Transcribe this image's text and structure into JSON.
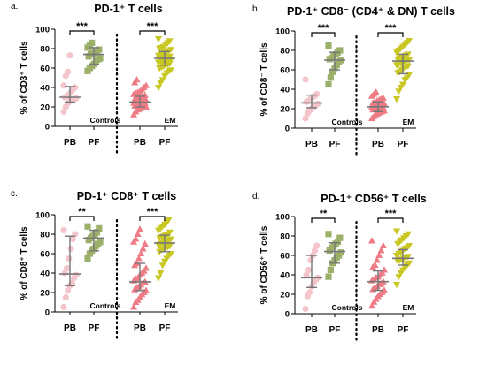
{
  "chart_data": [
    {
      "type": "scatter",
      "panel_label": "a.",
      "title": "PD-1⁺ T cells",
      "ylabel": "% of CD3⁺ T cells",
      "ylim": [
        0,
        100
      ],
      "yticks": [
        0,
        20,
        40,
        60,
        80,
        100
      ],
      "categories": [
        "PB",
        "PF",
        "PB",
        "PF"
      ],
      "group_labels": [
        "Controls",
        "EM"
      ],
      "significance": [
        "***",
        "***"
      ],
      "series": [
        {
          "group": "Controls",
          "category": "PB",
          "marker": "circle",
          "color": "#f4c6cb",
          "values": [
            15,
            20,
            24,
            26,
            27,
            28,
            29,
            30,
            31,
            33,
            35,
            38,
            40,
            42,
            52,
            56,
            73
          ],
          "median": 30,
          "iqr": [
            25,
            41
          ]
        },
        {
          "group": "Controls",
          "category": "PF",
          "marker": "square",
          "color": "#9cb06a",
          "values": [
            57,
            60,
            62,
            64,
            67,
            69,
            70,
            72,
            74,
            75,
            76,
            77,
            79,
            81,
            83,
            86
          ],
          "median": 74,
          "iqr": [
            64,
            81
          ]
        },
        {
          "group": "EM",
          "category": "PB",
          "marker": "triangle-up",
          "color": "#ee7b85",
          "values": [
            12,
            15,
            17,
            18,
            19,
            20,
            20,
            21,
            22,
            22,
            23,
            23,
            24,
            24,
            25,
            25,
            26,
            26,
            27,
            27,
            28,
            29,
            30,
            30,
            31,
            32,
            33,
            34,
            35,
            36,
            38,
            40,
            42,
            45,
            48
          ],
          "median": 25,
          "iqr": [
            20,
            31
          ]
        },
        {
          "group": "EM",
          "category": "PF",
          "marker": "triangle-down",
          "color": "#c9c822",
          "values": [
            40,
            45,
            48,
            52,
            55,
            57,
            58,
            60,
            61,
            62,
            63,
            64,
            65,
            66,
            67,
            67,
            68,
            68,
            69,
            69,
            70,
            70,
            71,
            71,
            72,
            72,
            73,
            74,
            75,
            76,
            77,
            78,
            79,
            80,
            81,
            82,
            84,
            86,
            88,
            90
          ],
          "median": 70,
          "iqr": [
            63,
            77
          ]
        }
      ]
    },
    {
      "type": "scatter",
      "panel_label": "b.",
      "title": "PD-1⁺ CD8⁻ (CD4⁺ & DN) T cells",
      "ylabel": "% of CD8⁻ T cells",
      "ylim": [
        0,
        100
      ],
      "yticks": [
        0,
        20,
        40,
        60,
        80,
        100
      ],
      "categories": [
        "PB",
        "PF",
        "PB",
        "PF"
      ],
      "group_labels": [
        "Controls",
        "EM"
      ],
      "significance": [
        "***",
        "***"
      ],
      "series": [
        {
          "group": "Controls",
          "category": "PB",
          "marker": "circle",
          "color": "#f4c6cb",
          "values": [
            10,
            15,
            18,
            20,
            22,
            24,
            25,
            27,
            28,
            30,
            32,
            33,
            35,
            50
          ],
          "median": 26,
          "iqr": [
            21,
            34
          ]
        },
        {
          "group": "Controls",
          "category": "PF",
          "marker": "square",
          "color": "#9cb06a",
          "values": [
            45,
            52,
            58,
            62,
            65,
            68,
            70,
            71,
            72,
            74,
            76,
            78,
            80,
            85
          ],
          "median": 70,
          "iqr": [
            60,
            78
          ]
        },
        {
          "group": "EM",
          "category": "PB",
          "marker": "triangle-up",
          "color": "#ee7b85",
          "values": [
            10,
            12,
            14,
            15,
            16,
            17,
            18,
            19,
            19,
            20,
            20,
            21,
            21,
            22,
            22,
            23,
            23,
            24,
            24,
            25,
            26,
            27,
            28,
            29,
            30,
            31,
            33,
            35,
            37
          ],
          "median": 22,
          "iqr": [
            17,
            27
          ]
        },
        {
          "group": "EM",
          "category": "PF",
          "marker": "triangle-down",
          "color": "#c9c822",
          "values": [
            30,
            38,
            42,
            45,
            50,
            52,
            55,
            57,
            58,
            60,
            62,
            63,
            64,
            65,
            66,
            67,
            68,
            69,
            70,
            70,
            71,
            72,
            73,
            74,
            75,
            76,
            78,
            80,
            82,
            84,
            86,
            88,
            90
          ],
          "median": 69,
          "iqr": [
            56,
            76
          ]
        }
      ]
    },
    {
      "type": "scatter",
      "panel_label": "c.",
      "title": "PD-1⁺ CD8⁺ T cells",
      "ylabel": "% of CD8⁺ T cells",
      "ylim": [
        0,
        100
      ],
      "yticks": [
        0,
        20,
        40,
        60,
        80,
        100
      ],
      "categories": [
        "PB",
        "PF",
        "PB",
        "PF"
      ],
      "group_labels": [
        "Controls",
        "EM"
      ],
      "significance": [
        "**",
        "***"
      ],
      "series": [
        {
          "group": "Controls",
          "category": "PB",
          "marker": "circle",
          "color": "#f4c6cb",
          "values": [
            5,
            15,
            22,
            27,
            30,
            35,
            38,
            40,
            45,
            55,
            65,
            75,
            80,
            84
          ],
          "median": 39,
          "iqr": [
            27,
            78
          ]
        },
        {
          "group": "Controls",
          "category": "PF",
          "marker": "square",
          "color": "#9cb06a",
          "values": [
            55,
            60,
            63,
            65,
            68,
            70,
            72,
            74,
            76,
            78,
            80,
            82,
            86,
            88
          ],
          "median": 76,
          "iqr": [
            63,
            84
          ]
        },
        {
          "group": "EM",
          "category": "PB",
          "marker": "triangle-up",
          "color": "#ee7b85",
          "values": [
            5,
            10,
            12,
            15,
            18,
            20,
            22,
            23,
            25,
            26,
            28,
            30,
            31,
            32,
            34,
            35,
            38,
            40,
            42,
            45,
            48,
            50,
            55,
            60,
            65,
            70,
            72,
            75,
            80,
            85
          ],
          "median": 31,
          "iqr": [
            22,
            50
          ]
        },
        {
          "group": "EM",
          "category": "PF",
          "marker": "triangle-down",
          "color": "#c9c822",
          "values": [
            35,
            40,
            48,
            52,
            55,
            58,
            60,
            62,
            64,
            65,
            66,
            67,
            68,
            69,
            70,
            71,
            72,
            73,
            74,
            75,
            76,
            77,
            78,
            79,
            80,
            82,
            84,
            86,
            88,
            90,
            92,
            95
          ],
          "median": 71,
          "iqr": [
            62,
            79
          ]
        }
      ]
    },
    {
      "type": "scatter",
      "panel_label": "d.",
      "title": "PD-1⁺ CD56⁺ T cells",
      "ylabel": "% of CD56⁺ T cells",
      "ylim": [
        0,
        100
      ],
      "yticks": [
        0,
        20,
        40,
        60,
        80,
        100
      ],
      "categories": [
        "PB",
        "PF",
        "PB",
        "PF"
      ],
      "group_labels": [
        "Controls",
        "EM"
      ],
      "significance": [
        "**",
        "***"
      ],
      "series": [
        {
          "group": "Controls",
          "category": "PB",
          "marker": "circle",
          "color": "#f4c6cb",
          "values": [
            5,
            18,
            22,
            28,
            32,
            35,
            37,
            40,
            45,
            55,
            60,
            65,
            70
          ],
          "median": 37,
          "iqr": [
            27,
            60
          ]
        },
        {
          "group": "Controls",
          "category": "PF",
          "marker": "square",
          "color": "#9cb06a",
          "values": [
            38,
            45,
            52,
            55,
            58,
            60,
            63,
            65,
            68,
            70,
            72,
            74,
            78,
            82
          ],
          "median": 64,
          "iqr": [
            52,
            73
          ]
        },
        {
          "group": "EM",
          "category": "PB",
          "marker": "triangle-up",
          "color": "#ee7b85",
          "values": [
            8,
            12,
            15,
            18,
            20,
            22,
            24,
            25,
            27,
            28,
            30,
            31,
            33,
            34,
            35,
            37,
            38,
            40,
            42,
            45,
            48,
            50,
            55,
            60,
            65,
            70,
            75
          ],
          "median": 33,
          "iqr": [
            24,
            44
          ]
        },
        {
          "group": "EM",
          "category": "PF",
          "marker": "triangle-down",
          "color": "#c9c822",
          "values": [
            30,
            38,
            42,
            45,
            48,
            50,
            52,
            54,
            55,
            56,
            57,
            58,
            59,
            60,
            62,
            63,
            65,
            67,
            68,
            70,
            72,
            74,
            76,
            78,
            80,
            82,
            85
          ],
          "median": 57,
          "iqr": [
            50,
            66
          ]
        }
      ]
    }
  ]
}
